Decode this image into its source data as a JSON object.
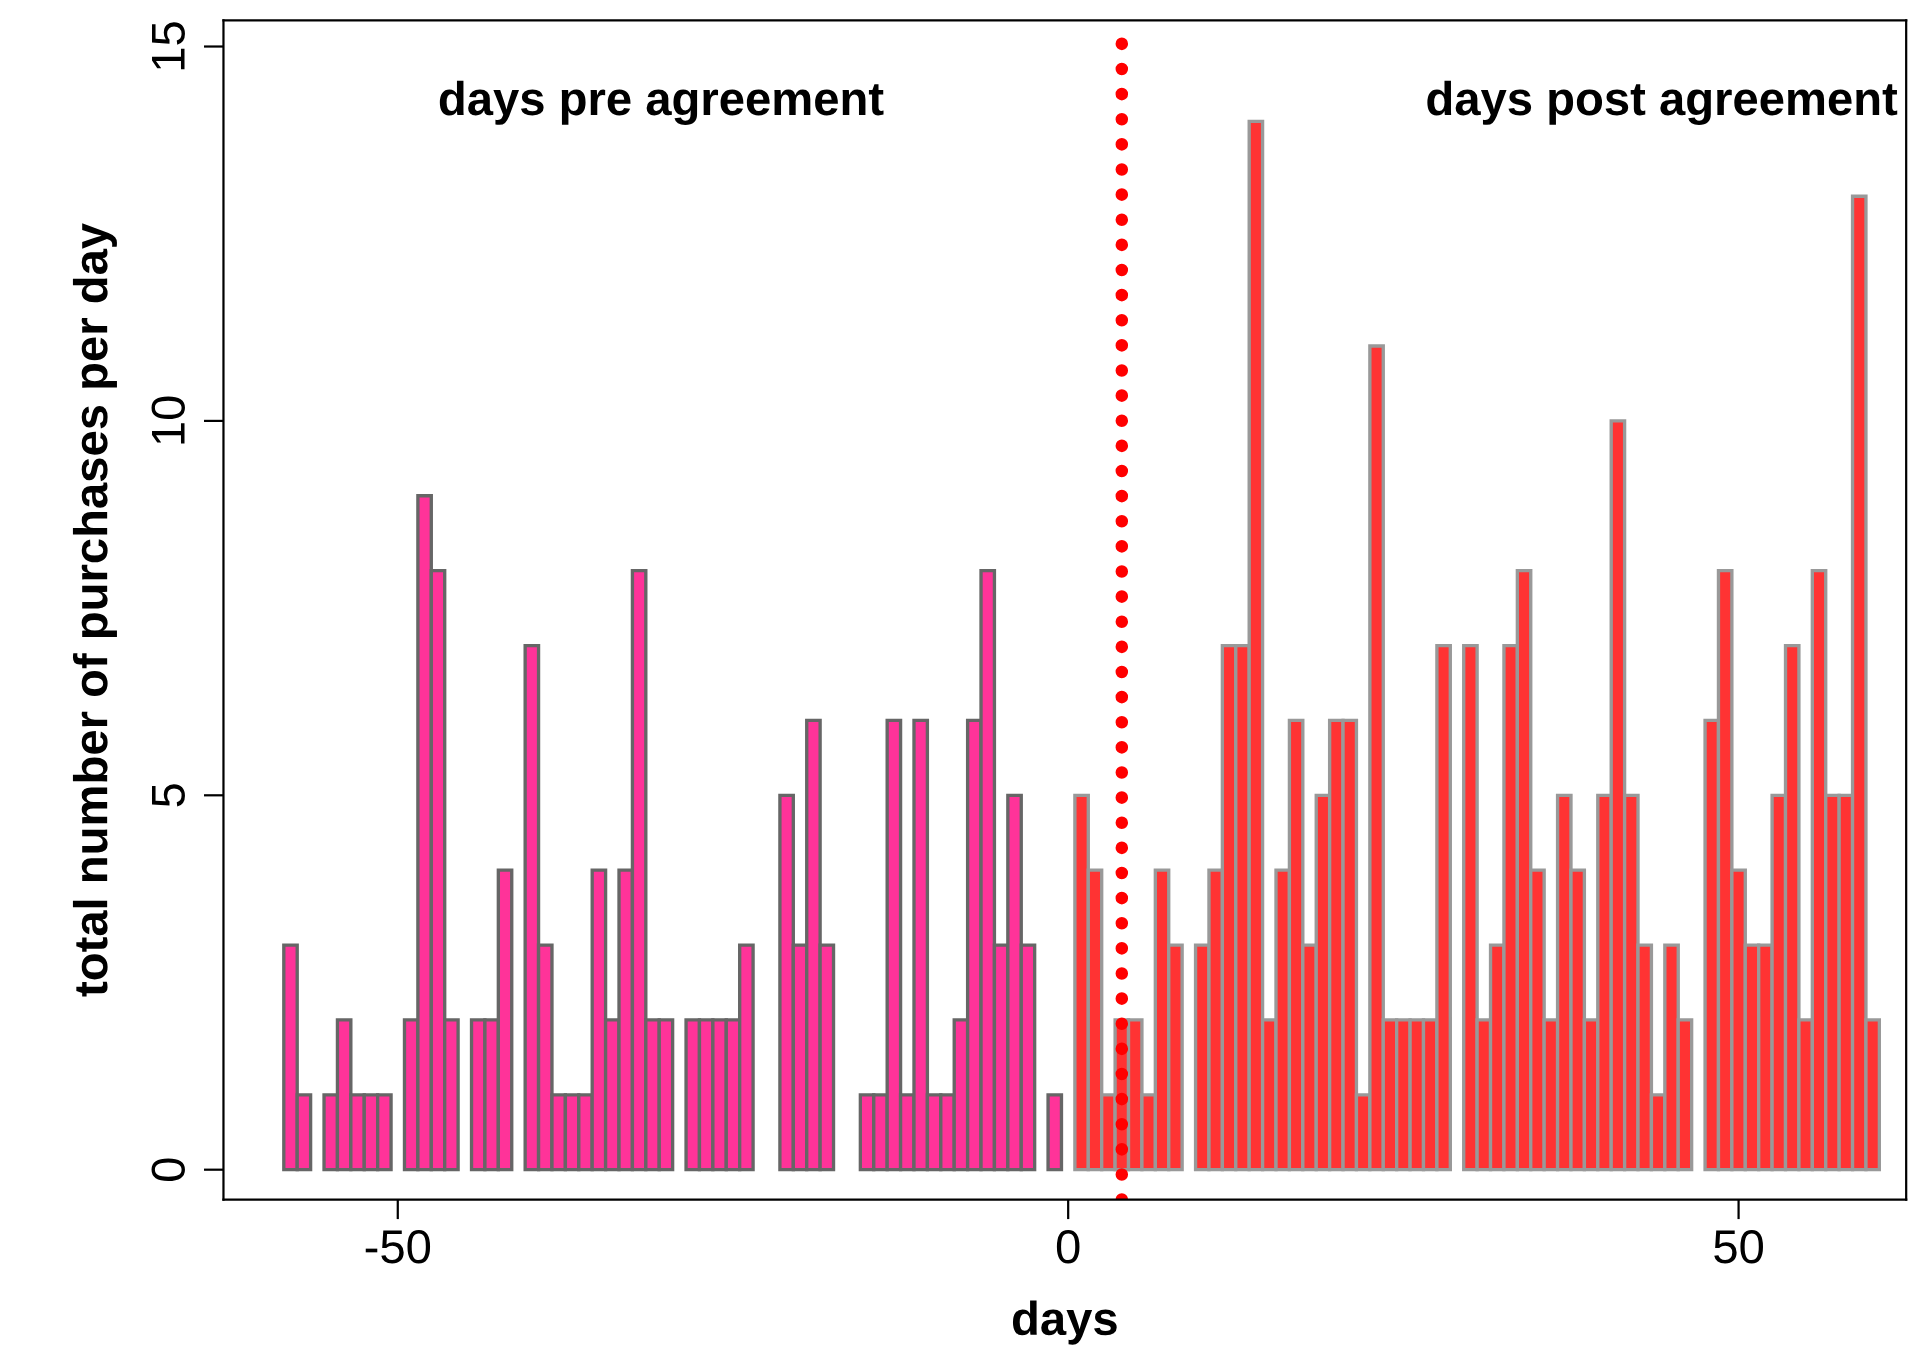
{
  "chart_data": {
    "type": "bar",
    "xlabel": "days",
    "ylabel": "total number of purchases per day",
    "series": [
      {
        "color": "#ff3399",
        "x": [
          -58,
          -57,
          -55,
          -54,
          -53,
          -52,
          -51,
          -49,
          -48,
          -47,
          -46,
          -44,
          -43,
          -42,
          -40,
          -39,
          -38,
          -37,
          -36,
          -35,
          -34,
          -33,
          -32,
          -31,
          -30,
          -28,
          -27,
          -26,
          -25,
          -24,
          -21,
          -20,
          -19,
          -18,
          -15,
          -14,
          -13,
          -12,
          -11,
          -10,
          -9,
          -8,
          -7,
          -6,
          -5,
          -4,
          -3,
          -1
        ],
        "values": [
          3,
          1,
          1,
          2,
          1,
          1,
          1,
          2,
          9,
          8,
          2,
          2,
          2,
          4,
          7,
          3,
          1,
          1,
          1,
          4,
          2,
          4,
          8,
          2,
          2,
          2,
          2,
          2,
          2,
          3,
          5,
          3,
          6,
          3,
          1,
          1,
          6,
          1,
          6,
          1,
          1,
          2,
          6,
          8,
          3,
          5,
          3,
          1
        ]
      },
      {
        "color": "#ff3333",
        "x": [
          1,
          2,
          3,
          4,
          5,
          6,
          7,
          8,
          10,
          11,
          12,
          13,
          14,
          15,
          16,
          17,
          18,
          19,
          20,
          21,
          22,
          23,
          24,
          25,
          26,
          27,
          28,
          30,
          31,
          32,
          33,
          34,
          35,
          36,
          37,
          38,
          39,
          40,
          41,
          42,
          43,
          44,
          45,
          46,
          48,
          49,
          50,
          51,
          52,
          53,
          54,
          55,
          56,
          57,
          58,
          59,
          60
        ],
        "values": [
          5,
          4,
          1,
          2,
          2,
          1,
          4,
          3,
          3,
          4,
          7,
          7,
          14,
          2,
          4,
          6,
          3,
          5,
          6,
          6,
          1,
          11,
          2,
          2,
          2,
          2,
          7,
          7,
          2,
          3,
          7,
          8,
          4,
          2,
          5,
          4,
          2,
          5,
          10,
          5,
          3,
          1,
          3,
          2,
          6,
          8,
          4,
          3,
          3,
          5,
          7,
          2,
          8,
          5,
          5,
          13,
          2
        ]
      }
    ],
    "ref_lines": [
      {
        "axis": "x",
        "value": 4,
        "color": "#ff0000",
        "line_style": "dotted"
      }
    ],
    "annotations": [
      "days pre agreement",
      "days post agreement"
    ],
    "xlim": [
      -63,
      62.5
    ],
    "ylim": [
      -0.4,
      15.35
    ],
    "xticks": [
      -50,
      0,
      50
    ],
    "yticks": [
      0,
      5,
      10,
      15
    ],
    "grid": false,
    "legend": false
  }
}
